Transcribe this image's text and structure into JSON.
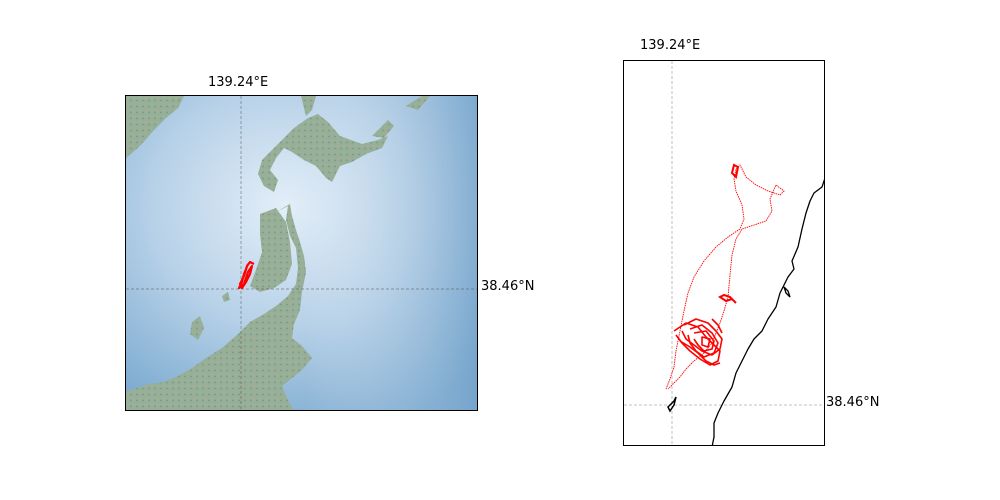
{
  "left_map": {
    "longitude_label": "139.24°E",
    "latitude_label": "38.46°N",
    "colors": {
      "ocean_light": "#d6e6f3",
      "ocean_deep": "#7aa9cf",
      "land": "#8fae98",
      "relief": "#b89878",
      "track": "#ff0000"
    }
  },
  "right_map": {
    "longitude_label": "139.24°E",
    "latitude_label": "38.46°N",
    "colors": {
      "coastline": "#000000",
      "track": "#ff0000",
      "gridline": "#b0b0b0"
    }
  }
}
